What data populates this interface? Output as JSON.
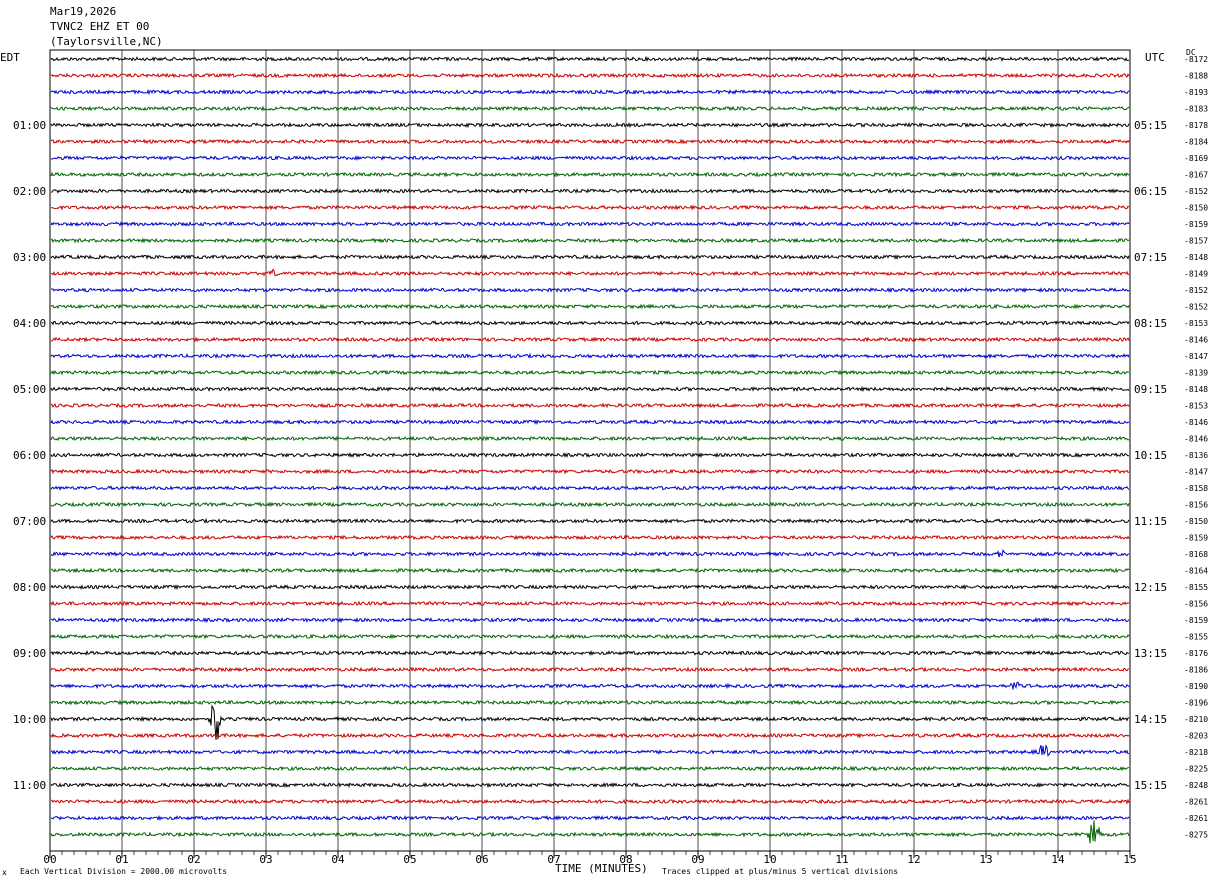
{
  "header": {
    "date": "Mar19,2026",
    "station": "TVNC2 EHZ ET 00",
    "location": "(Taylorsville,NC)"
  },
  "left_timezone": "EDT",
  "right_timezone": "UTC",
  "dc_label": "DC",
  "footer": {
    "scale_note": "Each Vertical Division = 2000.00 microvolts",
    "axis_title": "TIME (MINUTES)",
    "clip_note": "Traces clipped at plus/minus 5 vertical divisions",
    "corner_mark": "x"
  },
  "colors": {
    "trace_cycle": [
      "#000000",
      "#cc0000",
      "#0000cc",
      "#006400"
    ],
    "grid": "#000000"
  },
  "chart_data": {
    "type": "line",
    "x_axis": {
      "label": "TIME (MINUTES)",
      "range": [
        0,
        15
      ],
      "ticks": [
        "00",
        "01",
        "02",
        "03",
        "04",
        "05",
        "06",
        "07",
        "08",
        "09",
        "10",
        "11",
        "12",
        "13",
        "14",
        "15"
      ]
    },
    "left_hour_labels": [
      "01:00",
      "02:00",
      "03:00",
      "04:00",
      "05:00",
      "06:00",
      "07:00",
      "08:00",
      "09:00",
      "10:00",
      "11:00"
    ],
    "right_hour_labels": [
      "05:15",
      "06:15",
      "07:15",
      "08:15",
      "09:15",
      "10:15",
      "11:15",
      "12:15",
      "13:15",
      "14:15",
      "15:15"
    ],
    "dc_offsets": [
      "-8172",
      "-8188",
      "-8193",
      "-8183",
      "-8178",
      "-8184",
      "-8169",
      "-8167",
      "-8152",
      "-8150",
      "-8159",
      "-8157",
      "-8148",
      "-8149",
      "-8152",
      "-8152",
      "-8153",
      "-8146",
      "-8147",
      "-8139",
      "-8148",
      "-8153",
      "-8146",
      "-8146",
      "-8136",
      "-8147",
      "-8158",
      "-8156",
      "-8150",
      "-8159",
      "-8168",
      "-8164",
      "-8155",
      "-8156",
      "-8159",
      "-8155",
      "-8176",
      "-8186",
      "-8190",
      "-8196",
      "-8210",
      "-8203",
      "-8218",
      "-8225",
      "-8248",
      "-8261",
      "-8261",
      "-8275"
    ],
    "events": [
      {
        "trace": 41,
        "minute": 2.3,
        "amplitude": 2.5
      },
      {
        "trace": 43,
        "minute": 13.8,
        "amplitude": 0.8
      },
      {
        "trace": 48,
        "minute": 14.5,
        "amplitude": 2.0
      },
      {
        "trace": 14,
        "minute": 3.1,
        "amplitude": 0.4
      },
      {
        "trace": 39,
        "minute": 13.4,
        "amplitude": 0.5
      },
      {
        "trace": 31,
        "minute": 13.2,
        "amplitude": 0.4
      }
    ]
  }
}
